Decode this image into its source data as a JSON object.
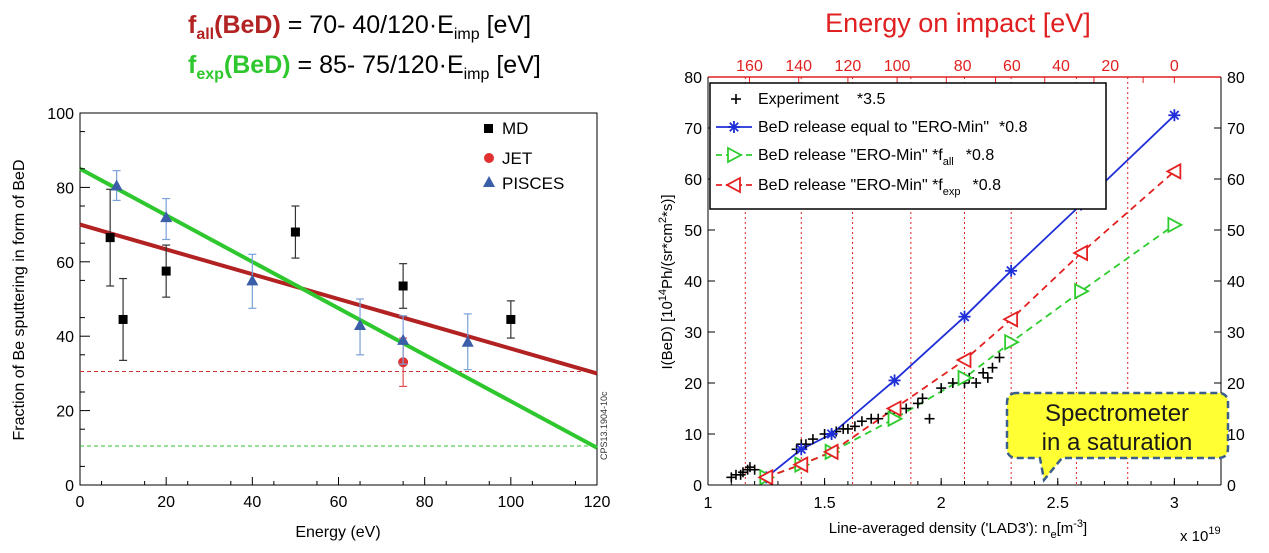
{
  "colors": {
    "red_line": "#b22222",
    "green_line": "#2ec72e",
    "md": "#000000",
    "jet": "#e03030",
    "pisces": "#3a5ea8",
    "blue": "#1f2fd8",
    "red": "#e42020",
    "green": "#2ecc2e",
    "title_red": "#e02020",
    "callout_fill": "#ffff33",
    "callout_border": "#3a5f8a"
  },
  "formulas": {
    "f_all": {
      "f": "f",
      "sub": "all",
      "name": "(BeD)",
      "rhs": " =  70- 40/120·E",
      "sub2": "imp",
      "unit": " [eV]"
    },
    "f_exp": {
      "f": "f",
      "sub": "exp",
      "name": "(BeD)",
      "rhs": " =  85- 75/120·E",
      "sub2": "imp",
      "unit": " [eV]"
    }
  },
  "chart_data": [
    {
      "type": "scatter",
      "title": "",
      "xlabel": "Energy (eV)",
      "ylabel": "Fraction of Be sputtering in form of BeD",
      "xlim": [
        0,
        120
      ],
      "ylim": [
        0,
        100
      ],
      "xticks": [
        0,
        20,
        40,
        60,
        80,
        100,
        120
      ],
      "yticks": [
        0,
        20,
        40,
        60,
        80,
        100
      ],
      "side_label": "CPS13.1904-10c",
      "series": [
        {
          "name": "MD",
          "marker": "square",
          "points": [
            {
              "x": 7,
              "y": 66.5,
              "lo": 53.5,
              "hi": 79.5
            },
            {
              "x": 10,
              "y": 44.5,
              "lo": 33.5,
              "hi": 55.5
            },
            {
              "x": 20,
              "y": 57.5,
              "lo": 50.5,
              "hi": 64.5
            },
            {
              "x": 50,
              "y": 68,
              "lo": 61,
              "hi": 75
            },
            {
              "x": 75,
              "y": 53.5,
              "lo": 47.5,
              "hi": 59.5
            },
            {
              "x": 100,
              "y": 44.5,
              "lo": 39.5,
              "hi": 49.5
            }
          ]
        },
        {
          "name": "JET",
          "marker": "circle",
          "points": [
            {
              "x": 75,
              "y": 33,
              "lo": 26.5,
              "hi": 39.5
            }
          ]
        },
        {
          "name": "PISCES",
          "marker": "triangle",
          "points": [
            {
              "x": 8.5,
              "y": 80.5,
              "lo": 76.5,
              "hi": 84.5
            },
            {
              "x": 20,
              "y": 72,
              "lo": 66,
              "hi": 77
            },
            {
              "x": 40,
              "y": 55,
              "lo": 47.5,
              "hi": 62
            },
            {
              "x": 65,
              "y": 43,
              "lo": 35,
              "hi": 50
            },
            {
              "x": 75,
              "y": 39,
              "lo": 32.5,
              "hi": 45.5
            },
            {
              "x": 90,
              "y": 38.5,
              "lo": 31,
              "hi": 46
            }
          ]
        }
      ],
      "lines": [
        {
          "id": "f_all",
          "x": [
            0,
            120
          ],
          "y": [
            70,
            30
          ]
        },
        {
          "id": "f_exp",
          "x": [
            0,
            120
          ],
          "y": [
            85,
            10
          ]
        }
      ],
      "hlines": [
        {
          "y": 30.5,
          "color": "red",
          "style": "dashed"
        },
        {
          "y": 10.5,
          "color": "green",
          "style": "dashed"
        }
      ],
      "legend": {
        "placement": "top-right",
        "entries": [
          "MD",
          "JET",
          "PISCES"
        ]
      }
    },
    {
      "type": "line",
      "title": "Energy on impact [eV]",
      "xlabel": "Line-averaged density ('LAD3'): n",
      "xlabel_sub": "e",
      "xlabel_unit_pre": "[m",
      "xlabel_unit_sup": "-3",
      "xlabel_unit_post": "]",
      "x_multiplier": "x 10",
      "x_multiplier_exp": "19",
      "ylabel": "I(BeD)  [10",
      "ylabel_sup1": "14",
      "ylabel_mid": "Ph/(sr*cm",
      "ylabel_sup2": "2",
      "ylabel_end": "*s)]",
      "xlim": [
        1,
        3.2
      ],
      "ylim": [
        0,
        80
      ],
      "xticks": [
        1,
        1.5,
        2,
        2.5,
        3
      ],
      "xtick_labels": [
        "1",
        "1.5",
        "2",
        "2.5",
        "3"
      ],
      "yticks": [
        0,
        10,
        20,
        30,
        40,
        50,
        60,
        70,
        80
      ],
      "top_axis": {
        "ticks_x": [
          1.178,
          1.389,
          1.6,
          1.811,
          2.022,
          2.233,
          2.444,
          2.655,
          2.866,
          3.0
        ],
        "labels": [
          "160",
          "140",
          "120",
          "100",
          "80",
          "60",
          "40",
          "20",
          "0"
        ],
        "label_x": [
          1.178,
          1.389,
          1.6,
          1.811,
          2.092,
          2.303,
          2.514,
          2.725,
          3.0
        ]
      },
      "vgrid_x": [
        1.16,
        1.4,
        1.62,
        1.87,
        2.1,
        2.3,
        2.58,
        2.8
      ],
      "series": [
        {
          "name": "Experiment",
          "factor": "*3.5",
          "marker": "plus",
          "color": "black",
          "x": [
            1.1,
            1.12,
            1.14,
            1.15,
            1.17,
            1.18,
            1.2,
            1.38,
            1.4,
            1.42,
            1.45,
            1.5,
            1.53,
            1.55,
            1.58,
            1.6,
            1.63,
            1.66,
            1.7,
            1.73,
            1.78,
            1.85,
            1.9,
            1.92,
            1.95,
            2.0,
            2.05,
            2.1,
            2.12,
            2.15,
            2.18,
            2.2,
            2.22,
            2.25
          ],
          "y": [
            1.5,
            2,
            2,
            2.5,
            3,
            3.5,
            3,
            7,
            8,
            8,
            9,
            10,
            10,
            10.5,
            11,
            11,
            11.5,
            12.5,
            13,
            13,
            14,
            15,
            16,
            17,
            13,
            19,
            20,
            20,
            21,
            20,
            22,
            21,
            23,
            25
          ]
        },
        {
          "name": "BeD release equal to \"ERO-Min\"",
          "factor": "*0.8",
          "marker": "asterisk",
          "color": "blue",
          "linestyle": "solid",
          "x": [
            1.25,
            1.4,
            1.53,
            1.8,
            2.1,
            2.3,
            2.6,
            3.0
          ],
          "y": [
            1.5,
            7,
            10,
            20.5,
            33,
            42,
            55,
            72.5
          ]
        },
        {
          "name": "BeD release \"ERO-Min\"  *f",
          "name_sub": "all",
          "factor": "*0.8",
          "marker": "triangle-right",
          "color": "green",
          "linestyle": "dashed",
          "x": [
            1.25,
            1.4,
            1.53,
            1.8,
            2.1,
            2.3,
            2.6,
            3.0
          ],
          "y": [
            1.5,
            4,
            6.5,
            13,
            21,
            28,
            38,
            51
          ]
        },
        {
          "name": "BeD release \"ERO-Min\"  *f",
          "name_sub": "exp",
          "factor": "*0.8",
          "marker": "triangle-left",
          "color": "red",
          "linestyle": "dashed",
          "x": [
            1.25,
            1.4,
            1.53,
            1.8,
            2.1,
            2.3,
            2.6,
            3.0
          ],
          "y": [
            1.5,
            4,
            6.5,
            15,
            24.5,
            32.5,
            45.5,
            61.5
          ]
        }
      ],
      "legend": {
        "placement": "top-left"
      },
      "callout": {
        "line1": "Spectrometer",
        "line2": "in a saturation"
      }
    }
  ]
}
